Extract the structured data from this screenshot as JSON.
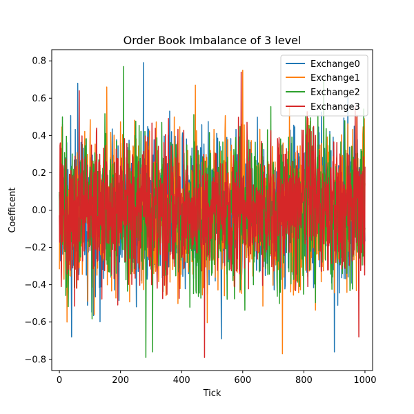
{
  "chart_data": {
    "type": "line",
    "title": "Order Book Imbalance of 3 level",
    "xlabel": "Tick",
    "ylabel": "Coefficent",
    "xlim": [
      -25,
      1025
    ],
    "ylim": [
      -0.86,
      0.86
    ],
    "x_ticks": [
      0,
      200,
      400,
      600,
      800,
      1000
    ],
    "x_tick_labels": [
      "0",
      "200",
      "400",
      "600",
      "800",
      "1000"
    ],
    "y_ticks": [
      -0.8,
      -0.6,
      -0.4,
      -0.2,
      0.0,
      0.2,
      0.4,
      0.6,
      0.8
    ],
    "y_tick_labels": [
      "−0.8",
      "−0.6",
      "−0.4",
      "−0.2",
      "0.0",
      "0.2",
      "0.4",
      "0.6",
      "0.8"
    ],
    "grid": false,
    "legend_position": "top-right",
    "x_range": [
      0,
      1000
    ],
    "points_per_series": 1001,
    "series": [
      {
        "name": "Exchange0",
        "color": "#1f77b4",
        "seed": 11,
        "spread": 0.22,
        "extremes": [
          [
            60,
            0.68
          ],
          [
            275,
            0.79
          ],
          [
            900,
            -0.76
          ],
          [
            40,
            -0.68
          ],
          [
            530,
            -0.69
          ]
        ]
      },
      {
        "name": "Exchange1",
        "color": "#ff7f0e",
        "seed": 23,
        "spread": 0.22,
        "extremes": [
          [
            600,
            0.75
          ],
          [
            155,
            0.66
          ],
          [
            730,
            -0.77
          ],
          [
            25,
            -0.6
          ],
          [
            445,
            0.67
          ]
        ]
      },
      {
        "name": "Exchange2",
        "color": "#2ca02c",
        "seed": 37,
        "spread": 0.22,
        "extremes": [
          [
            210,
            0.77
          ],
          [
            283,
            -0.79
          ],
          [
            305,
            -0.76
          ],
          [
            865,
            0.7
          ],
          [
            10,
            0.5
          ]
        ]
      },
      {
        "name": "Exchange3",
        "color": "#d62728",
        "seed": 53,
        "spread": 0.2,
        "extremes": [
          [
            595,
            0.74
          ],
          [
            475,
            -0.79
          ],
          [
            65,
            0.64
          ],
          [
            980,
            -0.68
          ],
          [
            6,
            -0.41
          ]
        ]
      }
    ]
  }
}
